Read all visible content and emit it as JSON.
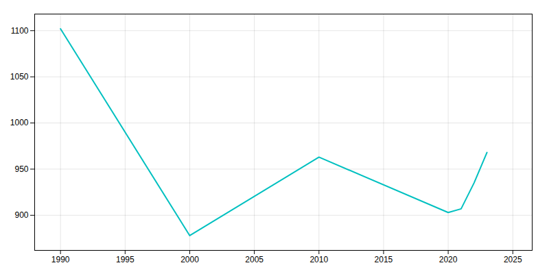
{
  "chart_data": {
    "type": "line",
    "x": [
      1990,
      2000,
      2010,
      2020,
      2021,
      2022,
      2023
    ],
    "values": [
      1102,
      878,
      963,
      903,
      907,
      935,
      968
    ],
    "color": "#00C0C0",
    "xlim": [
      1988,
      2026.5
    ],
    "ylim": [
      862,
      1118
    ],
    "xticks": [
      1990,
      1995,
      2000,
      2005,
      2010,
      2015,
      2020,
      2025
    ],
    "yticks": [
      900,
      950,
      1000,
      1050,
      1100
    ],
    "grid": true
  }
}
